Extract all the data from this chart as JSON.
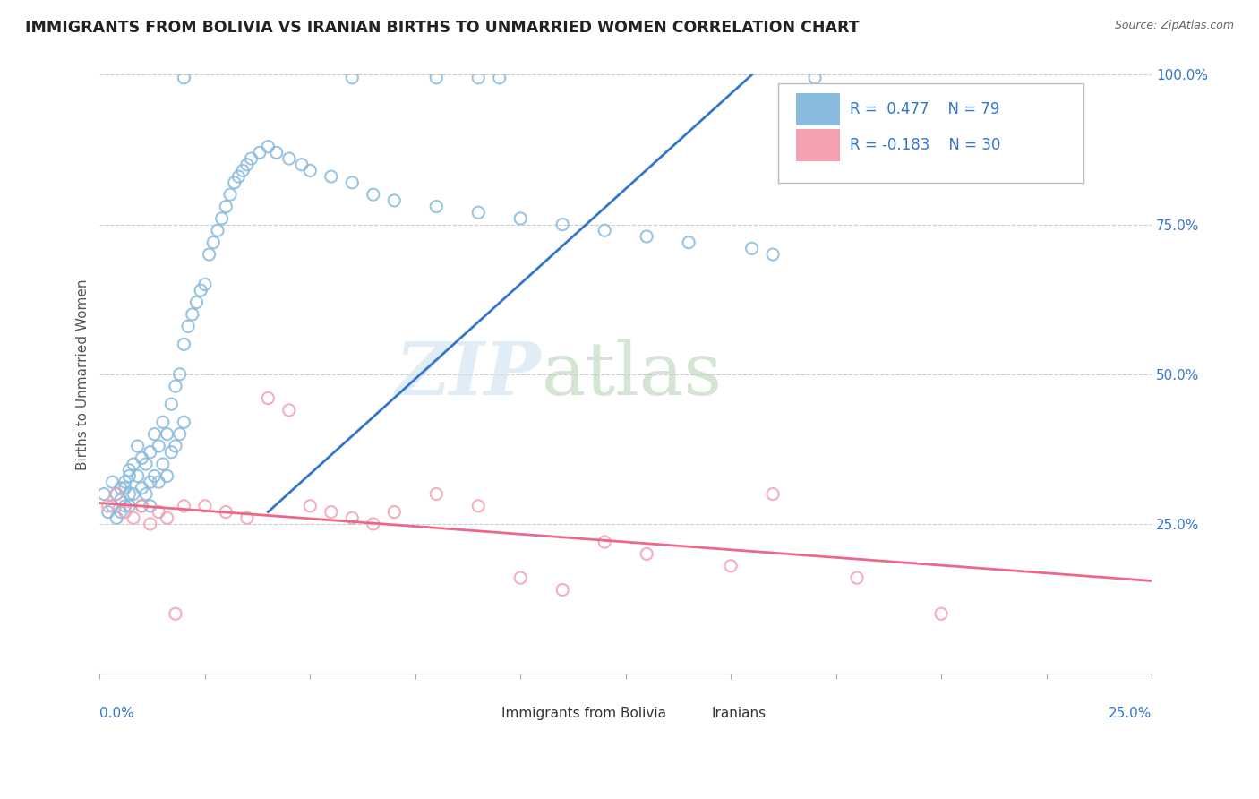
{
  "title": "IMMIGRANTS FROM BOLIVIA VS IRANIAN BIRTHS TO UNMARRIED WOMEN CORRELATION CHART",
  "source": "Source: ZipAtlas.com",
  "ylabel": "Births to Unmarried Women",
  "legend_label_1": "Immigrants from Bolivia",
  "legend_label_2": "Iranians",
  "r1": 0.477,
  "n1": 79,
  "r2": -0.183,
  "n2": 30,
  "blue_color": "#88bbdd",
  "pink_color": "#f4a0b0",
  "blue_line_color": "#3377cc",
  "pink_line_color": "#ee6688",
  "xlim": [
    0.0,
    0.25
  ],
  "ylim": [
    0.0,
    1.0
  ],
  "blue_scatter_x": [
    0.001,
    0.002,
    0.003,
    0.003,
    0.004,
    0.004,
    0.005,
    0.005,
    0.005,
    0.006,
    0.006,
    0.006,
    0.007,
    0.007,
    0.007,
    0.007,
    0.008,
    0.008,
    0.009,
    0.009,
    0.01,
    0.01,
    0.01,
    0.011,
    0.011,
    0.012,
    0.012,
    0.012,
    0.013,
    0.013,
    0.014,
    0.014,
    0.015,
    0.015,
    0.016,
    0.016,
    0.017,
    0.017,
    0.018,
    0.018,
    0.019,
    0.019,
    0.02,
    0.02,
    0.021,
    0.022,
    0.023,
    0.024,
    0.025,
    0.026,
    0.027,
    0.028,
    0.029,
    0.03,
    0.031,
    0.032,
    0.033,
    0.034,
    0.035,
    0.036,
    0.038,
    0.04,
    0.042,
    0.045,
    0.048,
    0.05,
    0.055,
    0.06,
    0.065,
    0.07,
    0.08,
    0.09,
    0.1,
    0.11,
    0.12,
    0.13,
    0.14,
    0.155,
    0.16
  ],
  "blue_scatter_y": [
    0.3,
    0.27,
    0.32,
    0.28,
    0.3,
    0.26,
    0.31,
    0.29,
    0.27,
    0.32,
    0.28,
    0.31,
    0.34,
    0.3,
    0.28,
    0.33,
    0.35,
    0.3,
    0.38,
    0.33,
    0.36,
    0.31,
    0.28,
    0.35,
    0.3,
    0.37,
    0.32,
    0.28,
    0.4,
    0.33,
    0.38,
    0.32,
    0.42,
    0.35,
    0.4,
    0.33,
    0.45,
    0.37,
    0.48,
    0.38,
    0.5,
    0.4,
    0.55,
    0.42,
    0.58,
    0.6,
    0.62,
    0.64,
    0.65,
    0.7,
    0.72,
    0.74,
    0.76,
    0.78,
    0.8,
    0.82,
    0.83,
    0.84,
    0.85,
    0.86,
    0.87,
    0.88,
    0.87,
    0.86,
    0.85,
    0.84,
    0.83,
    0.82,
    0.8,
    0.79,
    0.78,
    0.77,
    0.76,
    0.75,
    0.74,
    0.73,
    0.72,
    0.71,
    0.7
  ],
  "blue_top_x": [
    0.02,
    0.06,
    0.08,
    0.09,
    0.095,
    0.17
  ],
  "blue_top_y": [
    0.995,
    0.995,
    0.995,
    0.995,
    0.995,
    0.995
  ],
  "pink_scatter_x": [
    0.002,
    0.004,
    0.006,
    0.008,
    0.01,
    0.012,
    0.014,
    0.016,
    0.018,
    0.02,
    0.025,
    0.03,
    0.035,
    0.04,
    0.045,
    0.05,
    0.055,
    0.06,
    0.065,
    0.07,
    0.08,
    0.09,
    0.1,
    0.11,
    0.12,
    0.13,
    0.15,
    0.16,
    0.18,
    0.2
  ],
  "pink_scatter_y": [
    0.28,
    0.3,
    0.27,
    0.26,
    0.28,
    0.25,
    0.27,
    0.26,
    0.1,
    0.28,
    0.28,
    0.27,
    0.26,
    0.46,
    0.44,
    0.28,
    0.27,
    0.26,
    0.25,
    0.27,
    0.3,
    0.28,
    0.16,
    0.14,
    0.22,
    0.2,
    0.18,
    0.3,
    0.16,
    0.1
  ],
  "blue_line_x": [
    0.04,
    0.155
  ],
  "blue_line_y": [
    0.27,
    1.0
  ],
  "pink_line_x": [
    0.0,
    0.25
  ],
  "pink_line_y": [
    0.285,
    0.155
  ]
}
